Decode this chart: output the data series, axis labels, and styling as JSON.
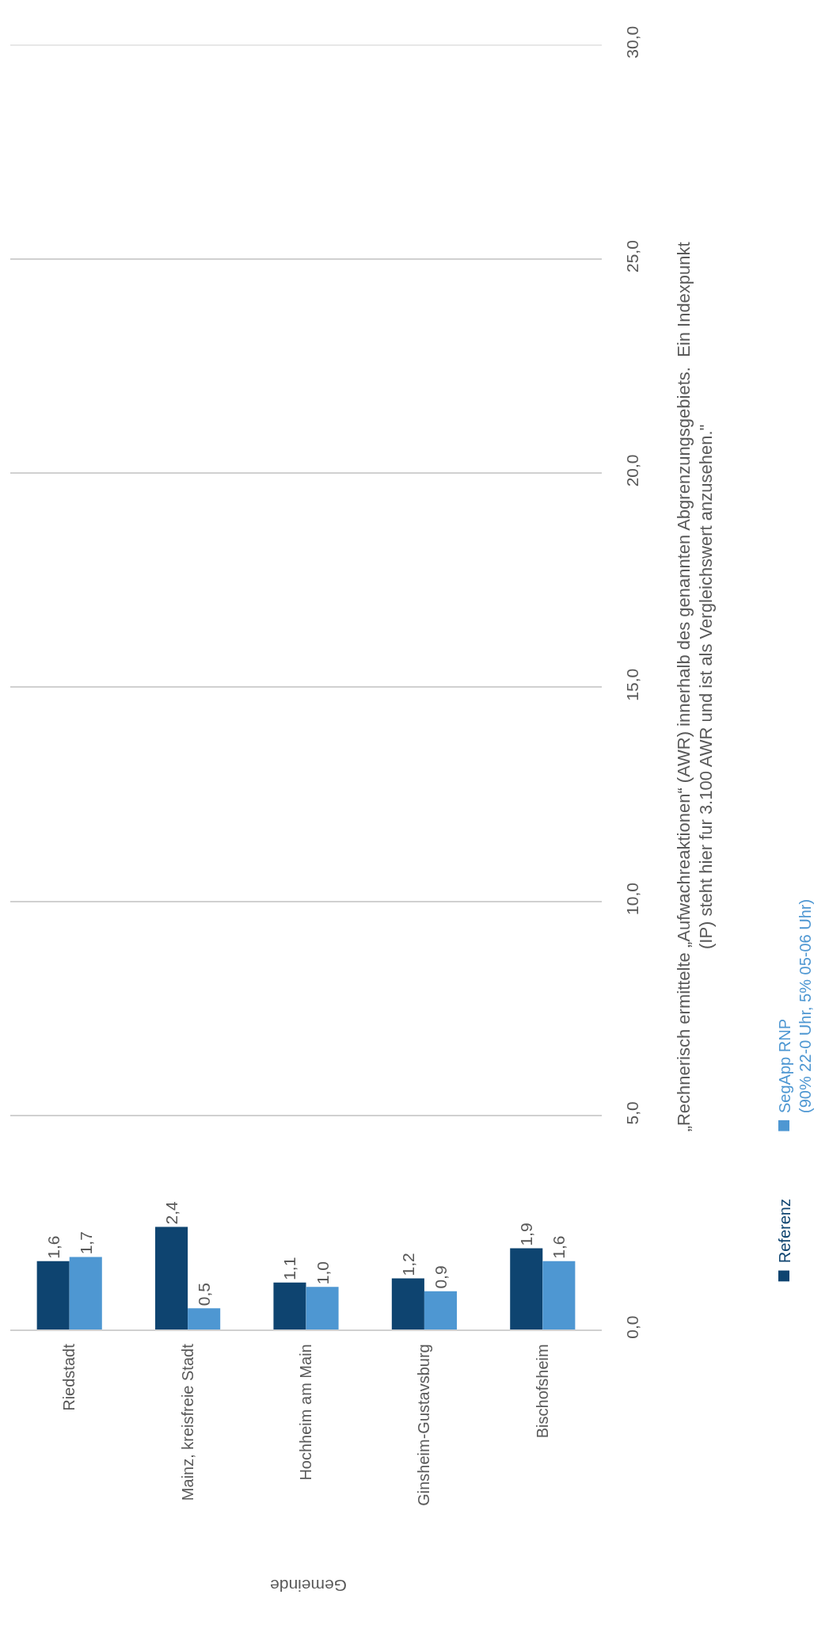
{
  "chart_data": {
    "type": "bar",
    "ylabel": "„Rechnerisch ermittelte „Aufwachreaktionen“ (AWR) innerhalb des genannten Abgrenzungsgebiets.  Ein Indexpunkt\n(IP) steht hier fur 3.100 AWR und ist als Vergleichswert anzusehen.\"",
    "xlabel": "Gemeinde",
    "categories": [
      "Riedstadt",
      "Mainz, kreisfreie Stadt",
      "Hochheim am Main",
      "Ginsheim-Gustavsburg",
      "Bischofsheim"
    ],
    "series": [
      {
        "name": "Referenz",
        "color": "#0e4470",
        "values": [
          1.6,
          2.4,
          1.1,
          1.2,
          1.9
        ],
        "value_labels": [
          "1,6",
          "2,4",
          "1,1",
          "1,2",
          "1,9"
        ]
      },
      {
        "name": "SegApp RNP\n(90% 22-0 Uhr, 5% 05-06 Uhr)",
        "color": "#4e97d2",
        "values": [
          1.7,
          0.5,
          1.0,
          0.9,
          1.6
        ],
        "value_labels": [
          "1,7",
          "0,5",
          "1,0",
          "0,9",
          "1,6"
        ]
      }
    ],
    "ylim": [
      0,
      30
    ],
    "yticks": [
      {
        "value": 0,
        "label": "0,0"
      },
      {
        "value": 5,
        "label": "5,0"
      },
      {
        "value": 10,
        "label": "10,0"
      },
      {
        "value": 15,
        "label": "15,0"
      },
      {
        "value": 20,
        "label": "20,0"
      },
      {
        "value": 25,
        "label": "25,0"
      },
      {
        "value": 30,
        "label": "30,0"
      }
    ],
    "grid": "y",
    "legend": "right"
  }
}
